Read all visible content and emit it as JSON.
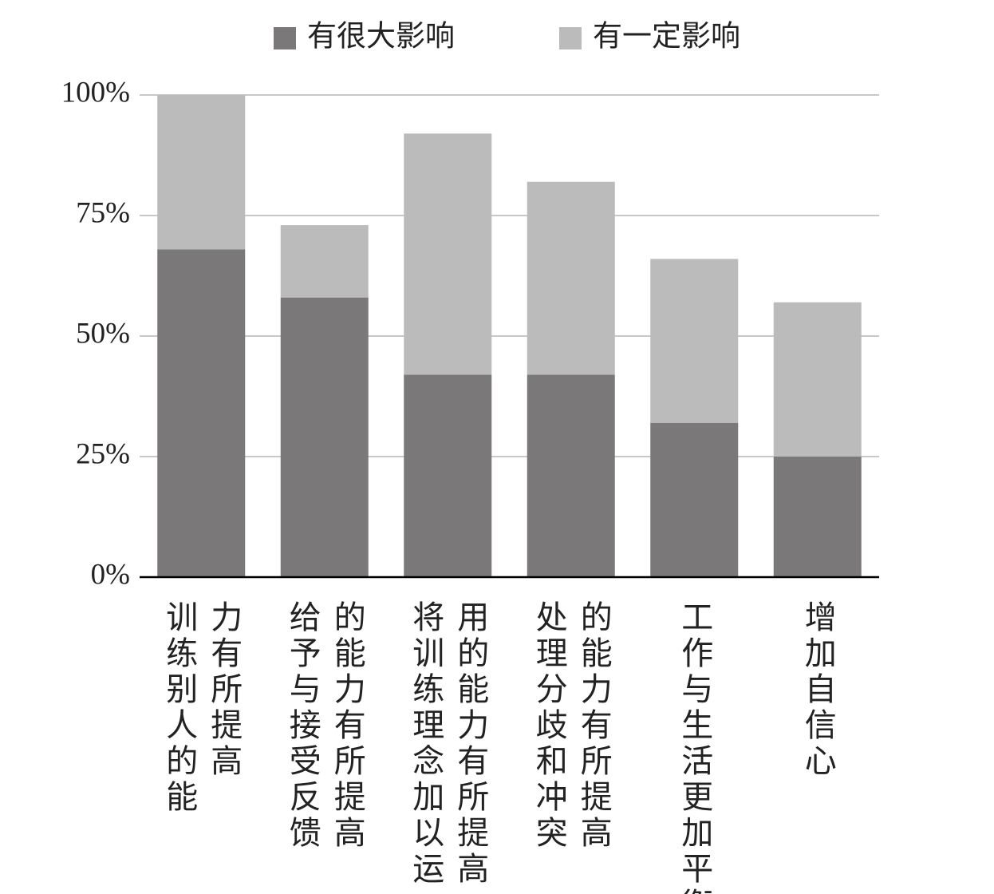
{
  "chart_data": {
    "type": "stacked_bar",
    "categories": [
      "训练别人的能力有所提高",
      "给予与接受反馈的能力有所提高",
      "将训练理念加以运用的能力有所提高",
      "处理分歧和冲突的能力有所提高",
      "工作与生活更加平衡",
      "增加自信心"
    ],
    "series": [
      {
        "name": "有很大影响",
        "color": "#7a7879",
        "values": [
          68,
          58,
          42,
          42,
          32,
          25
        ]
      },
      {
        "name": "有一定影响",
        "color": "#bcbbbc",
        "values": [
          32,
          15,
          50,
          40,
          34,
          32
        ]
      }
    ],
    "ylim": [
      0,
      100
    ],
    "yticks": [
      {
        "value": 0,
        "label": "0%"
      },
      {
        "value": 25,
        "label": "25%"
      },
      {
        "value": 50,
        "label": "50%"
      },
      {
        "value": 75,
        "label": "75%"
      },
      {
        "value": 100,
        "label": "100%"
      }
    ],
    "grid": true,
    "legend": "top"
  }
}
